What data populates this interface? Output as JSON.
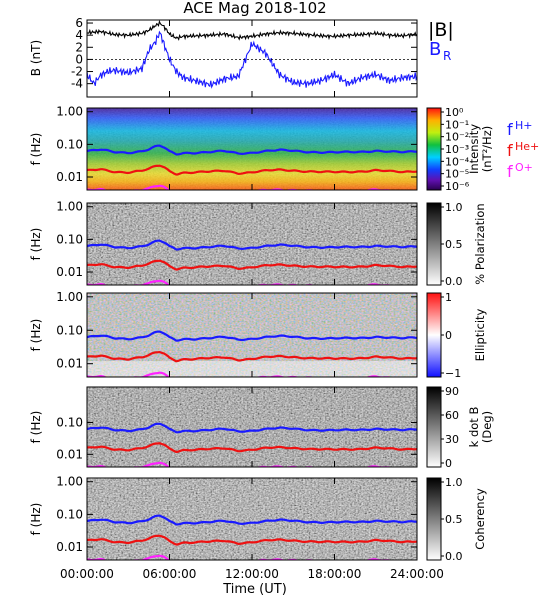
{
  "title": "ACE Mag 2018-102",
  "colors": {
    "B_total": "#000000",
    "B_R": "#1a1aff",
    "f_H": "#1a1aff",
    "f_He": "#ee1111",
    "f_O": "#ff22ff"
  },
  "chart_data": [
    {
      "type": "line",
      "panel": "magnetic-field",
      "ylabel": "B (nT)",
      "ylim": [
        -6.2,
        6.5
      ],
      "yticks": [
        -4,
        -2,
        0,
        2,
        4,
        6
      ],
      "xlim_hours": [
        0,
        24
      ],
      "legend": [
        "|B|",
        "B_R"
      ],
      "legend_labels": {
        "b_total": "|B|",
        "b_r_main": "B",
        "b_r_sub": "R"
      },
      "series": [
        {
          "name": "|B|",
          "x_hours": [
            0,
            1,
            2,
            3,
            4,
            4.5,
            5,
            5.3,
            5.6,
            6,
            6.5,
            7,
            8,
            9,
            10,
            11,
            12,
            13,
            14,
            15,
            16,
            17,
            18,
            19,
            20,
            21,
            22,
            23,
            24
          ],
          "values": [
            4.4,
            4.6,
            4.1,
            4.0,
            4.3,
            4.8,
            5.6,
            6.0,
            5.4,
            4.2,
            3.5,
            3.8,
            3.9,
            4.0,
            4.2,
            3.6,
            3.8,
            4.2,
            4.4,
            4.3,
            4.1,
            3.9,
            3.8,
            4.0,
            4.1,
            4.3,
            4.0,
            3.9,
            4.2
          ]
        },
        {
          "name": "B_R",
          "x_hours": [
            0,
            0.5,
            1,
            1.5,
            2,
            3,
            4,
            4.5,
            5,
            5.3,
            5.6,
            6,
            6.5,
            7,
            8,
            9,
            10,
            11,
            12,
            13,
            14,
            15,
            16,
            17,
            18,
            19,
            20,
            21,
            22,
            23,
            24
          ],
          "values": [
            -2.5,
            -4.0,
            -2.6,
            -2.0,
            -1.8,
            -2.2,
            -1.5,
            1.5,
            3.0,
            4.5,
            2.5,
            0.0,
            -2.0,
            -3.0,
            -3.6,
            -4.2,
            -3.2,
            -2.8,
            2.6,
            1.0,
            -2.5,
            -3.8,
            -4.0,
            -3.5,
            -2.5,
            -4.0,
            -3.0,
            -2.5,
            -3.5,
            -3.0,
            -2.8
          ]
        }
      ]
    },
    {
      "type": "heatmap",
      "panel": "power-spectrum",
      "ylabel": "f (Hz)",
      "yscale": "log",
      "ylim": [
        0.004,
        1.3
      ],
      "yticks": [
        "1.00",
        "0.10",
        "0.01"
      ],
      "colorbar": {
        "label": "Intensity (nT²/Hz)",
        "label_main": "Intensity",
        "label_unit": "(nT²/Hz)",
        "scale": "rainbow",
        "ticks": [
          "10⁰",
          "10⁻¹",
          "10⁻²",
          "10⁻³",
          "10⁻⁴",
          "10⁻⁵",
          "10⁻⁶"
        ]
      },
      "legend": [
        "f_H+",
        "f_He+",
        "f_O+"
      ],
      "legend_labels": {
        "f_h": "f",
        "f_h_sub": "H+",
        "f_he": "f",
        "f_he_sub": "He+",
        "f_o": "f",
        "f_o_sub": "O+"
      }
    },
    {
      "type": "heatmap",
      "panel": "polarization",
      "ylabel": "f (Hz)",
      "yscale": "log",
      "yticks": [
        "1.00",
        "0.10",
        "0.01"
      ],
      "colorbar": {
        "label": "% Polarization",
        "scale": "gray",
        "ticks": [
          "1.0",
          "0.5",
          "0.0"
        ]
      }
    },
    {
      "type": "heatmap",
      "panel": "ellipticity",
      "ylabel": "f (Hz)",
      "yscale": "log",
      "yticks": [
        "1.00",
        "0.10",
        "0.01"
      ],
      "colorbar": {
        "label": "Ellipticity",
        "scale": "blue-white-red",
        "ticks": [
          "1",
          "0",
          "−1"
        ]
      }
    },
    {
      "type": "heatmap",
      "panel": "wave-normal-angle",
      "ylabel": "f (Hz)",
      "yscale": "log",
      "yticks": [
        "0.10",
        "0.01"
      ],
      "colorbar": {
        "label": "k dot B (Deg)",
        "label_main": "k dot B",
        "label_unit": "(Deg)",
        "scale": "gray",
        "ticks": [
          "90",
          "60",
          "30",
          "0"
        ]
      }
    },
    {
      "type": "heatmap",
      "panel": "coherency",
      "ylabel": "f (Hz)",
      "yscale": "log",
      "yticks": [
        "1.00",
        "0.10",
        "0.01"
      ],
      "colorbar": {
        "label": "Coherency",
        "scale": "gray",
        "ticks": [
          "1.0",
          "0.5",
          "0.0"
        ]
      }
    },
    {
      "type": "line",
      "panel": "gyrofrequencies",
      "series": [
        {
          "name": "f_H+",
          "x_hours": [
            0,
            1,
            2,
            3,
            4,
            4.5,
            5,
            5.3,
            5.6,
            6,
            6.5,
            7,
            8,
            9,
            10,
            11,
            12,
            13,
            14,
            15,
            16,
            17,
            18,
            19,
            20,
            21,
            22,
            23,
            24
          ],
          "values": [
            0.062,
            0.068,
            0.058,
            0.056,
            0.062,
            0.07,
            0.085,
            0.09,
            0.08,
            0.06,
            0.05,
            0.055,
            0.056,
            0.058,
            0.062,
            0.053,
            0.056,
            0.062,
            0.066,
            0.064,
            0.06,
            0.057,
            0.056,
            0.058,
            0.06,
            0.064,
            0.059,
            0.057,
            0.062
          ]
        },
        {
          "name": "f_He+",
          "x_hours": [
            0,
            1,
            2,
            3,
            4,
            4.5,
            5,
            5.3,
            5.6,
            6,
            6.5,
            7,
            8,
            9,
            10,
            11,
            12,
            13,
            14,
            15,
            16,
            17,
            18,
            19,
            20,
            21,
            22,
            23,
            24
          ],
          "values": [
            0.0155,
            0.017,
            0.0145,
            0.014,
            0.0155,
            0.0175,
            0.0212,
            0.0225,
            0.02,
            0.015,
            0.0125,
            0.0137,
            0.014,
            0.0145,
            0.0155,
            0.0132,
            0.014,
            0.0155,
            0.0165,
            0.016,
            0.015,
            0.0142,
            0.014,
            0.0145,
            0.015,
            0.016,
            0.0148,
            0.0142,
            0.0155
          ]
        },
        {
          "name": "f_O+",
          "x_hours": [
            0,
            1,
            2,
            3,
            4,
            4.5,
            5,
            5.3,
            5.6,
            6,
            6.5,
            7,
            8,
            9,
            10,
            11,
            12,
            13,
            14,
            15,
            16,
            17,
            18,
            19,
            20,
            21,
            22,
            23,
            24
          ],
          "values": [
            0.0039,
            0.0042,
            0.0036,
            0.0035,
            0.0039,
            0.0044,
            0.0053,
            0.0056,
            0.005,
            0.0038,
            0.0031,
            0.0034,
            0.0035,
            0.0036,
            0.0039,
            0.0033,
            0.0035,
            0.0039,
            0.0041,
            0.004,
            0.0038,
            0.0036,
            0.0035,
            0.0036,
            0.0038,
            0.004,
            0.0037,
            0.0036,
            0.0039
          ]
        }
      ]
    }
  ],
  "xaxis": {
    "label": "Time (UT)",
    "ticks": [
      {
        "hours": 0,
        "label": "00:00:00"
      },
      {
        "hours": 6,
        "label": "06:00:00"
      },
      {
        "hours": 12,
        "label": "12:00:00"
      },
      {
        "hours": 18,
        "label": "18:00:00"
      },
      {
        "hours": 24,
        "label": "24:00:00"
      }
    ]
  }
}
